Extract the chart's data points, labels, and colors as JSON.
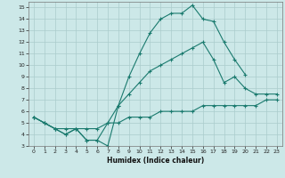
{
  "background_color": "#cce8e8",
  "grid_color": "#aacccc",
  "line_color": "#1a7a6e",
  "xlabel": "Humidex (Indice chaleur)",
  "xlim": [
    -0.5,
    23.5
  ],
  "ylim": [
    3,
    15.5
  ],
  "xticks": [
    0,
    1,
    2,
    3,
    4,
    5,
    6,
    7,
    8,
    9,
    10,
    11,
    12,
    13,
    14,
    15,
    16,
    17,
    18,
    19,
    20,
    21,
    22,
    23
  ],
  "yticks": [
    3,
    4,
    5,
    6,
    7,
    8,
    9,
    10,
    11,
    12,
    13,
    14,
    15
  ],
  "line1_x": [
    0,
    1,
    2,
    3,
    4,
    5,
    6,
    7,
    8,
    9,
    10,
    11,
    12,
    13,
    14,
    15,
    16,
    17,
    18,
    19,
    20
  ],
  "line1_y": [
    5.5,
    5.0,
    4.5,
    4.0,
    4.5,
    3.5,
    3.5,
    3.0,
    6.5,
    9.0,
    11.0,
    12.8,
    14.0,
    14.5,
    14.5,
    15.2,
    14.0,
    13.8,
    12.0,
    10.5,
    9.2
  ],
  "line2_x": [
    0,
    1,
    2,
    3,
    4,
    5,
    6,
    7,
    8,
    9,
    10,
    11,
    12,
    13,
    14,
    15,
    16,
    17,
    18,
    19,
    20,
    21,
    22,
    23
  ],
  "line2_y": [
    5.5,
    5.0,
    4.5,
    4.0,
    4.5,
    3.5,
    3.5,
    5.0,
    6.5,
    7.5,
    8.5,
    9.5,
    10.0,
    10.5,
    11.0,
    11.5,
    12.0,
    10.5,
    8.5,
    9.0,
    8.0,
    7.5,
    7.5,
    7.5
  ],
  "line3_x": [
    0,
    1,
    2,
    3,
    4,
    5,
    6,
    7,
    8,
    9,
    10,
    11,
    12,
    13,
    14,
    15,
    16,
    17,
    18,
    19,
    20,
    21,
    22,
    23
  ],
  "line3_y": [
    5.5,
    5.0,
    4.5,
    4.5,
    4.5,
    4.5,
    4.5,
    5.0,
    5.0,
    5.5,
    5.5,
    5.5,
    6.0,
    6.0,
    6.0,
    6.0,
    6.5,
    6.5,
    6.5,
    6.5,
    6.5,
    6.5,
    7.0,
    7.0
  ]
}
